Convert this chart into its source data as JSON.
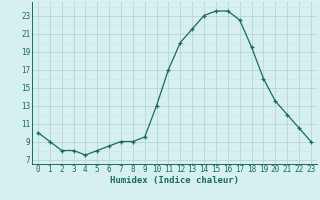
{
  "x": [
    0,
    1,
    2,
    3,
    4,
    5,
    6,
    7,
    8,
    9,
    10,
    11,
    12,
    13,
    14,
    15,
    16,
    17,
    18,
    19,
    20,
    21,
    22,
    23
  ],
  "y": [
    10,
    9,
    8,
    8,
    7.5,
    8,
    8.5,
    9,
    9,
    9.5,
    13,
    17,
    20,
    21.5,
    23,
    23.5,
    23.5,
    22.5,
    19.5,
    16,
    13.5,
    12,
    10.5,
    9
  ],
  "line_color": "#1a6b5a",
  "marker": "+",
  "bg_color": "#d6f0ef",
  "grid_minor_color": "#c8e4e4",
  "grid_major_color": "#b8d4d4",
  "xlabel": "Humidex (Indice chaleur)",
  "ylabel_ticks": [
    7,
    9,
    11,
    13,
    15,
    17,
    19,
    21,
    23
  ],
  "ylim": [
    6.5,
    24.5
  ],
  "xlim": [
    -0.5,
    23.5
  ],
  "xticks": [
    0,
    1,
    2,
    3,
    4,
    5,
    6,
    7,
    8,
    9,
    10,
    11,
    12,
    13,
    14,
    15,
    16,
    17,
    18,
    19,
    20,
    21,
    22,
    23
  ],
  "tick_label_color": "#1a6b5a",
  "label_fontsize": 6.5,
  "tick_fontsize": 5.5
}
